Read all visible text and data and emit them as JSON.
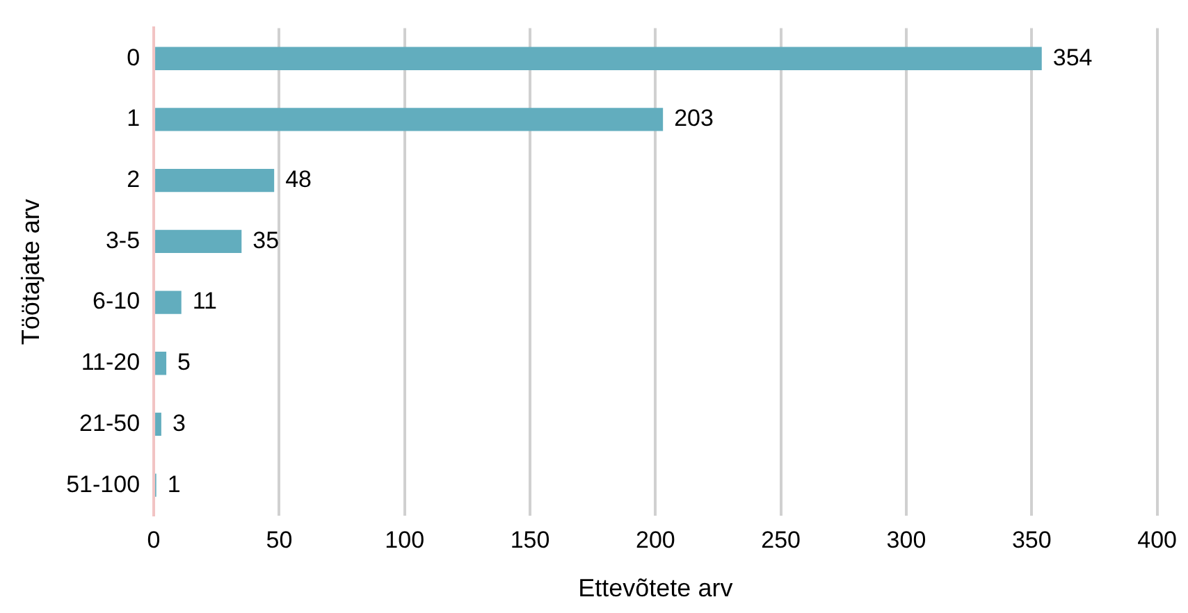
{
  "chart_data": {
    "type": "bar",
    "orientation": "horizontal",
    "xlabel": "Ettevõtete arv",
    "ylabel": "Töötajate arv",
    "categories": [
      "0",
      "1",
      "2",
      "3-5",
      "6-10",
      "11-20",
      "21-50",
      "51-100"
    ],
    "values": [
      354,
      203,
      48,
      35,
      11,
      5,
      3,
      1
    ],
    "color": "#62adbe",
    "xlim": [
      0,
      400
    ],
    "xticks": [
      0,
      50,
      100,
      150,
      200,
      250,
      300,
      350,
      400
    ],
    "grid": "x",
    "legend": false,
    "data_labels": true
  }
}
